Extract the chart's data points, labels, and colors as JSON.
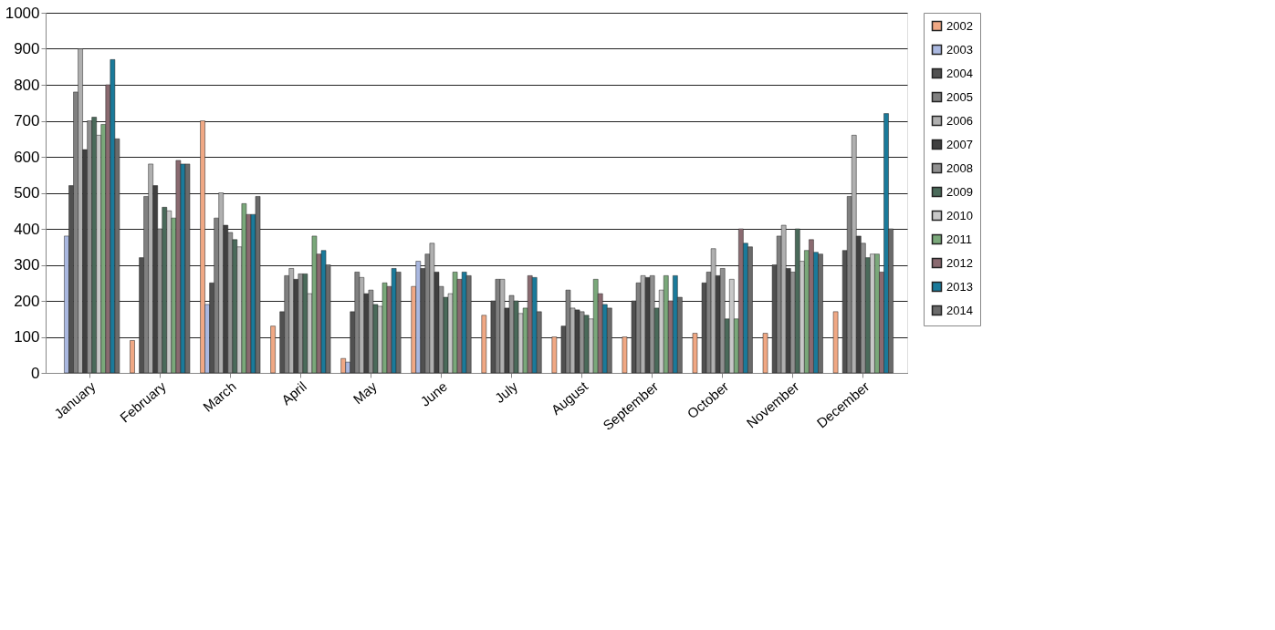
{
  "chart_data": {
    "type": "bar",
    "categories": [
      "January",
      "February",
      "March",
      "April",
      "May",
      "June",
      "July",
      "August",
      "September",
      "October",
      "November",
      "December"
    ],
    "ylim": [
      0,
      1000
    ],
    "yticks": [
      0,
      100,
      200,
      300,
      400,
      500,
      600,
      700,
      800,
      900,
      1000
    ],
    "grid": "y",
    "legend": "right",
    "series": [
      {
        "name": "2002",
        "color": "#f0a884",
        "values": [
          null,
          90,
          700,
          130,
          40,
          240,
          160,
          100,
          100,
          110,
          110,
          170
        ]
      },
      {
        "name": "2003",
        "color": "#aab8e0",
        "values": [
          380,
          null,
          190,
          null,
          30,
          310,
          null,
          null,
          null,
          null,
          null,
          null
        ]
      },
      {
        "name": "2004",
        "color": "#505050",
        "values": [
          520,
          320,
          250,
          170,
          170,
          290,
          200,
          130,
          200,
          250,
          300,
          340
        ]
      },
      {
        "name": "2005",
        "color": "#808080",
        "values": [
          780,
          490,
          430,
          270,
          280,
          330,
          260,
          230,
          250,
          280,
          380,
          490
        ]
      },
      {
        "name": "2006",
        "color": "#b0b0b0",
        "values": [
          900,
          580,
          500,
          290,
          265,
          360,
          260,
          180,
          270,
          345,
          410,
          660
        ]
      },
      {
        "name": "2007",
        "color": "#404040",
        "values": [
          620,
          520,
          410,
          260,
          220,
          280,
          180,
          175,
          265,
          270,
          290,
          380
        ]
      },
      {
        "name": "2008",
        "color": "#909090",
        "values": [
          700,
          400,
          390,
          275,
          230,
          240,
          215,
          170,
          270,
          290,
          280,
          360
        ]
      },
      {
        "name": "2009",
        "color": "#4a6a5a",
        "values": [
          710,
          460,
          370,
          275,
          190,
          210,
          200,
          160,
          180,
          150,
          400,
          320
        ]
      },
      {
        "name": "2010",
        "color": "#c8c8c8",
        "values": [
          660,
          450,
          350,
          220,
          185,
          220,
          165,
          150,
          230,
          260,
          310,
          330
        ]
      },
      {
        "name": "2011",
        "color": "#7aa87a",
        "values": [
          690,
          430,
          470,
          380,
          250,
          280,
          180,
          260,
          270,
          150,
          340,
          330
        ]
      },
      {
        "name": "2012",
        "color": "#8a6a70",
        "values": [
          800,
          590,
          440,
          330,
          240,
          260,
          270,
          220,
          200,
          400,
          370,
          280
        ]
      },
      {
        "name": "2013",
        "color": "#1a7a9a",
        "values": [
          870,
          580,
          440,
          340,
          290,
          280,
          265,
          190,
          270,
          360,
          335,
          720
        ]
      },
      {
        "name": "2014",
        "color": "#6a6a6a",
        "values": [
          650,
          580,
          490,
          300,
          280,
          270,
          170,
          180,
          210,
          350,
          330,
          400
        ]
      }
    ]
  }
}
